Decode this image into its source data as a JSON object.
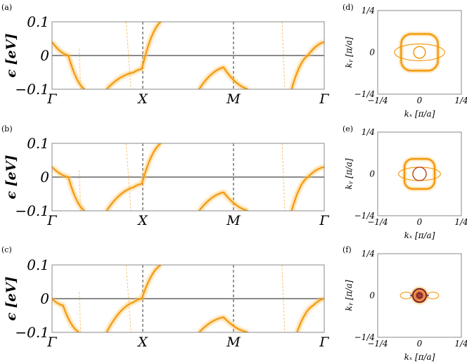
{
  "panel_labels": [
    "(a)",
    "(b)",
    "(c)",
    "(d)",
    "(e)",
    "(f)"
  ],
  "band_plot": {
    "ylabel": "ϵ [eV]",
    "ytick_labels": [
      "0.1",
      "0",
      "−0.1"
    ],
    "xtick_labels": [
      "Γ",
      "X",
      "M",
      "Γ"
    ]
  },
  "fermi_surface": {
    "xlabel": "kₓ [π/a]",
    "ylabel": "kᵧ [π/a]",
    "xtick_labels": [
      "−1/4",
      "0",
      "1/4"
    ],
    "ytick_labels": [
      "1/4",
      "0",
      "−1/4"
    ]
  },
  "colors": {
    "band": "#f39200",
    "band_glow": "#fbc15a",
    "fermi_level": "#8a8a8a",
    "dashed_line": "#555555",
    "fs_dark_ring": "#7a1f2b",
    "fs_blue": "#2a3a8a"
  },
  "chart_data": [
    {
      "type": "line",
      "panel": "(a)",
      "xlabel": "",
      "ylabel": "ϵ [eV]",
      "ylim": [
        -0.1,
        0.1
      ],
      "x_ticks": [
        "Γ",
        "X",
        "M",
        "Γ"
      ],
      "series": [
        {
          "values": [
            [
              0.0,
              0.04
            ],
            [
              0.06,
              0.0
            ],
            [
              0.12,
              -0.1
            ]
          ]
        },
        {
          "values": [
            [
              0.88,
              -0.1
            ],
            [
              0.94,
              0.0
            ],
            [
              1.0,
              0.04
            ]
          ]
        },
        {
          "values": [
            [
              0.2,
              -0.1
            ],
            [
              0.3,
              -0.05
            ],
            [
              0.33,
              -0.04
            ],
            [
              0.4,
              0.1
            ]
          ]
        },
        {
          "values": [
            [
              0.54,
              -0.1
            ],
            [
              0.63,
              -0.035
            ],
            [
              0.72,
              -0.1
            ]
          ]
        }
      ]
    },
    {
      "type": "line",
      "panel": "(b)",
      "xlabel": "",
      "ylabel": "ϵ [eV]",
      "ylim": [
        -0.1,
        0.1
      ],
      "x_ticks": [
        "Γ",
        "X",
        "M",
        "Γ"
      ],
      "series": [
        {
          "values": [
            [
              0.0,
              0.03
            ],
            [
              0.06,
              0.0
            ],
            [
              0.12,
              -0.1
            ]
          ]
        },
        {
          "values": [
            [
              0.88,
              -0.1
            ],
            [
              0.94,
              0.0
            ],
            [
              1.0,
              0.03
            ]
          ]
        },
        {
          "values": [
            [
              0.2,
              -0.1
            ],
            [
              0.3,
              -0.03
            ],
            [
              0.33,
              -0.02
            ],
            [
              0.4,
              0.1
            ]
          ]
        },
        {
          "values": [
            [
              0.54,
              -0.1
            ],
            [
              0.63,
              -0.045
            ],
            [
              0.72,
              -0.1
            ]
          ]
        }
      ]
    },
    {
      "type": "line",
      "panel": "(c)",
      "xlabel": "",
      "ylabel": "ϵ [eV]",
      "ylim": [
        -0.1,
        0.1
      ],
      "x_ticks": [
        "Γ",
        "X",
        "M",
        "Γ"
      ],
      "series": [
        {
          "values": [
            [
              0.0,
              0.0
            ],
            [
              0.04,
              -0.02
            ],
            [
              0.1,
              -0.1
            ]
          ]
        },
        {
          "values": [
            [
              0.9,
              -0.1
            ],
            [
              0.96,
              -0.02
            ],
            [
              1.0,
              0.0
            ]
          ]
        },
        {
          "values": [
            [
              0.2,
              -0.1
            ],
            [
              0.3,
              -0.01
            ],
            [
              0.33,
              0.0
            ],
            [
              0.4,
              0.1
            ]
          ]
        },
        {
          "values": [
            [
              0.54,
              -0.1
            ],
            [
              0.63,
              -0.055
            ],
            [
              0.72,
              -0.1
            ]
          ]
        }
      ]
    },
    {
      "type": "scatter",
      "panel": "(d)",
      "xlabel": "kₓ [π/a]",
      "ylabel": "kᵧ [π/a]",
      "xlim": [
        -0.25,
        0.25
      ],
      "ylim": [
        -0.25,
        0.25
      ],
      "contours": [
        {
          "shape": "rounded-square",
          "half_width": 0.11
        },
        {
          "shape": "ellipse",
          "rx": 0.15,
          "ry": 0.05
        },
        {
          "shape": "circle",
          "r": 0.035
        }
      ]
    },
    {
      "type": "scatter",
      "panel": "(e)",
      "xlabel": "kₓ [π/a]",
      "ylabel": "kᵧ [π/a]",
      "xlim": [
        -0.25,
        0.25
      ],
      "ylim": [
        -0.25,
        0.25
      ],
      "contours": [
        {
          "shape": "rounded-square",
          "half_width": 0.09
        },
        {
          "shape": "ellipse",
          "rx": 0.125,
          "ry": 0.04
        },
        {
          "shape": "circle",
          "r": 0.04
        }
      ]
    },
    {
      "type": "scatter",
      "panel": "(f)",
      "xlabel": "kₓ [π/a]",
      "ylabel": "kᵧ [π/a]",
      "xlim": [
        -0.25,
        0.25
      ],
      "ylim": [
        -0.25,
        0.25
      ],
      "contours": [
        {
          "shape": "circle",
          "r": 0.04
        },
        {
          "shape": "circle",
          "r": 0.015
        },
        {
          "shape": "lobes",
          "rx": 0.035,
          "ry": 0.02,
          "offset": 0.08
        }
      ]
    }
  ]
}
